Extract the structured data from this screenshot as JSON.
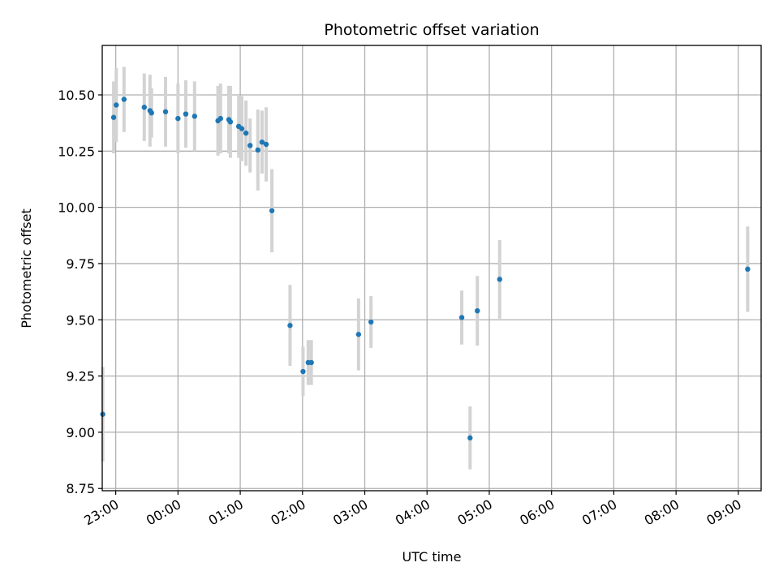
{
  "chart_data": {
    "type": "scatter",
    "title": "Photometric offset variation",
    "xlabel": "UTC time",
    "ylabel": "Photometric offset",
    "x_unit": "minutes relative to 00:00 UTC",
    "xlim": [
      -73,
      562
    ],
    "ylim": [
      8.74,
      10.72
    ],
    "x_ticks": [
      -60,
      0,
      60,
      120,
      180,
      240,
      300,
      360,
      420,
      480,
      540
    ],
    "x_tick_labels": [
      "23:00",
      "00:00",
      "01:00",
      "02:00",
      "03:00",
      "04:00",
      "05:00",
      "06:00",
      "07:00",
      "08:00",
      "09:00"
    ],
    "y_ticks": [
      8.75,
      9.0,
      9.25,
      9.5,
      9.75,
      10.0,
      10.25,
      10.5
    ],
    "y_tick_labels": [
      "8.75",
      "9.00",
      "9.25",
      "9.50",
      "9.75",
      "10.00",
      "10.25",
      "10.50"
    ],
    "grid": true,
    "point_color": "#1f77b4",
    "errorbar_color": "#d3d3d3",
    "points": [
      {
        "x": -72.5,
        "y": 9.08,
        "err": 0.21
      },
      {
        "x": -62,
        "y": 10.4,
        "err": 0.16
      },
      {
        "x": -59.5,
        "y": 10.455,
        "err": 0.165
      },
      {
        "x": -52,
        "y": 10.48,
        "err": 0.145
      },
      {
        "x": -32.5,
        "y": 10.445,
        "err": 0.15
      },
      {
        "x": -27,
        "y": 10.43,
        "err": 0.16
      },
      {
        "x": -25.5,
        "y": 10.42,
        "err": 0.11
      },
      {
        "x": -12,
        "y": 10.425,
        "err": 0.155
      },
      {
        "x": 0,
        "y": 10.395,
        "err": 0.155
      },
      {
        "x": 7.5,
        "y": 10.415,
        "err": 0.15
      },
      {
        "x": 16,
        "y": 10.405,
        "err": 0.155
      },
      {
        "x": 38.5,
        "y": 10.385,
        "err": 0.155
      },
      {
        "x": 41,
        "y": 10.395,
        "err": 0.155
      },
      {
        "x": 49,
        "y": 10.39,
        "err": 0.15
      },
      {
        "x": 50.5,
        "y": 10.38,
        "err": 0.16
      },
      {
        "x": 58.5,
        "y": 10.36,
        "err": 0.14
      },
      {
        "x": 61.5,
        "y": 10.35,
        "err": 0.145
      },
      {
        "x": 65.5,
        "y": 10.33,
        "err": 0.145
      },
      {
        "x": 69.5,
        "y": 10.275,
        "err": 0.12
      },
      {
        "x": 77,
        "y": 10.255,
        "err": 0.18
      },
      {
        "x": 81,
        "y": 10.29,
        "err": 0.14
      },
      {
        "x": 85,
        "y": 10.28,
        "err": 0.165
      },
      {
        "x": 90.5,
        "y": 9.985,
        "err": 0.185
      },
      {
        "x": 108,
        "y": 9.475,
        "err": 0.18
      },
      {
        "x": 120.5,
        "y": 9.27,
        "err": 0.11
      },
      {
        "x": 125.5,
        "y": 9.31,
        "err": 0.1
      },
      {
        "x": 128.5,
        "y": 9.31,
        "err": 0.1
      },
      {
        "x": 174,
        "y": 9.435,
        "err": 0.16
      },
      {
        "x": 186,
        "y": 9.49,
        "err": 0.115
      },
      {
        "x": 273.5,
        "y": 9.51,
        "err": 0.12
      },
      {
        "x": 281.5,
        "y": 8.975,
        "err": 0.14
      },
      {
        "x": 288.5,
        "y": 9.54,
        "err": 0.155
      },
      {
        "x": 310,
        "y": 9.68,
        "err": 0.175
      },
      {
        "x": 549,
        "y": 9.725,
        "err": 0.19
      }
    ]
  }
}
